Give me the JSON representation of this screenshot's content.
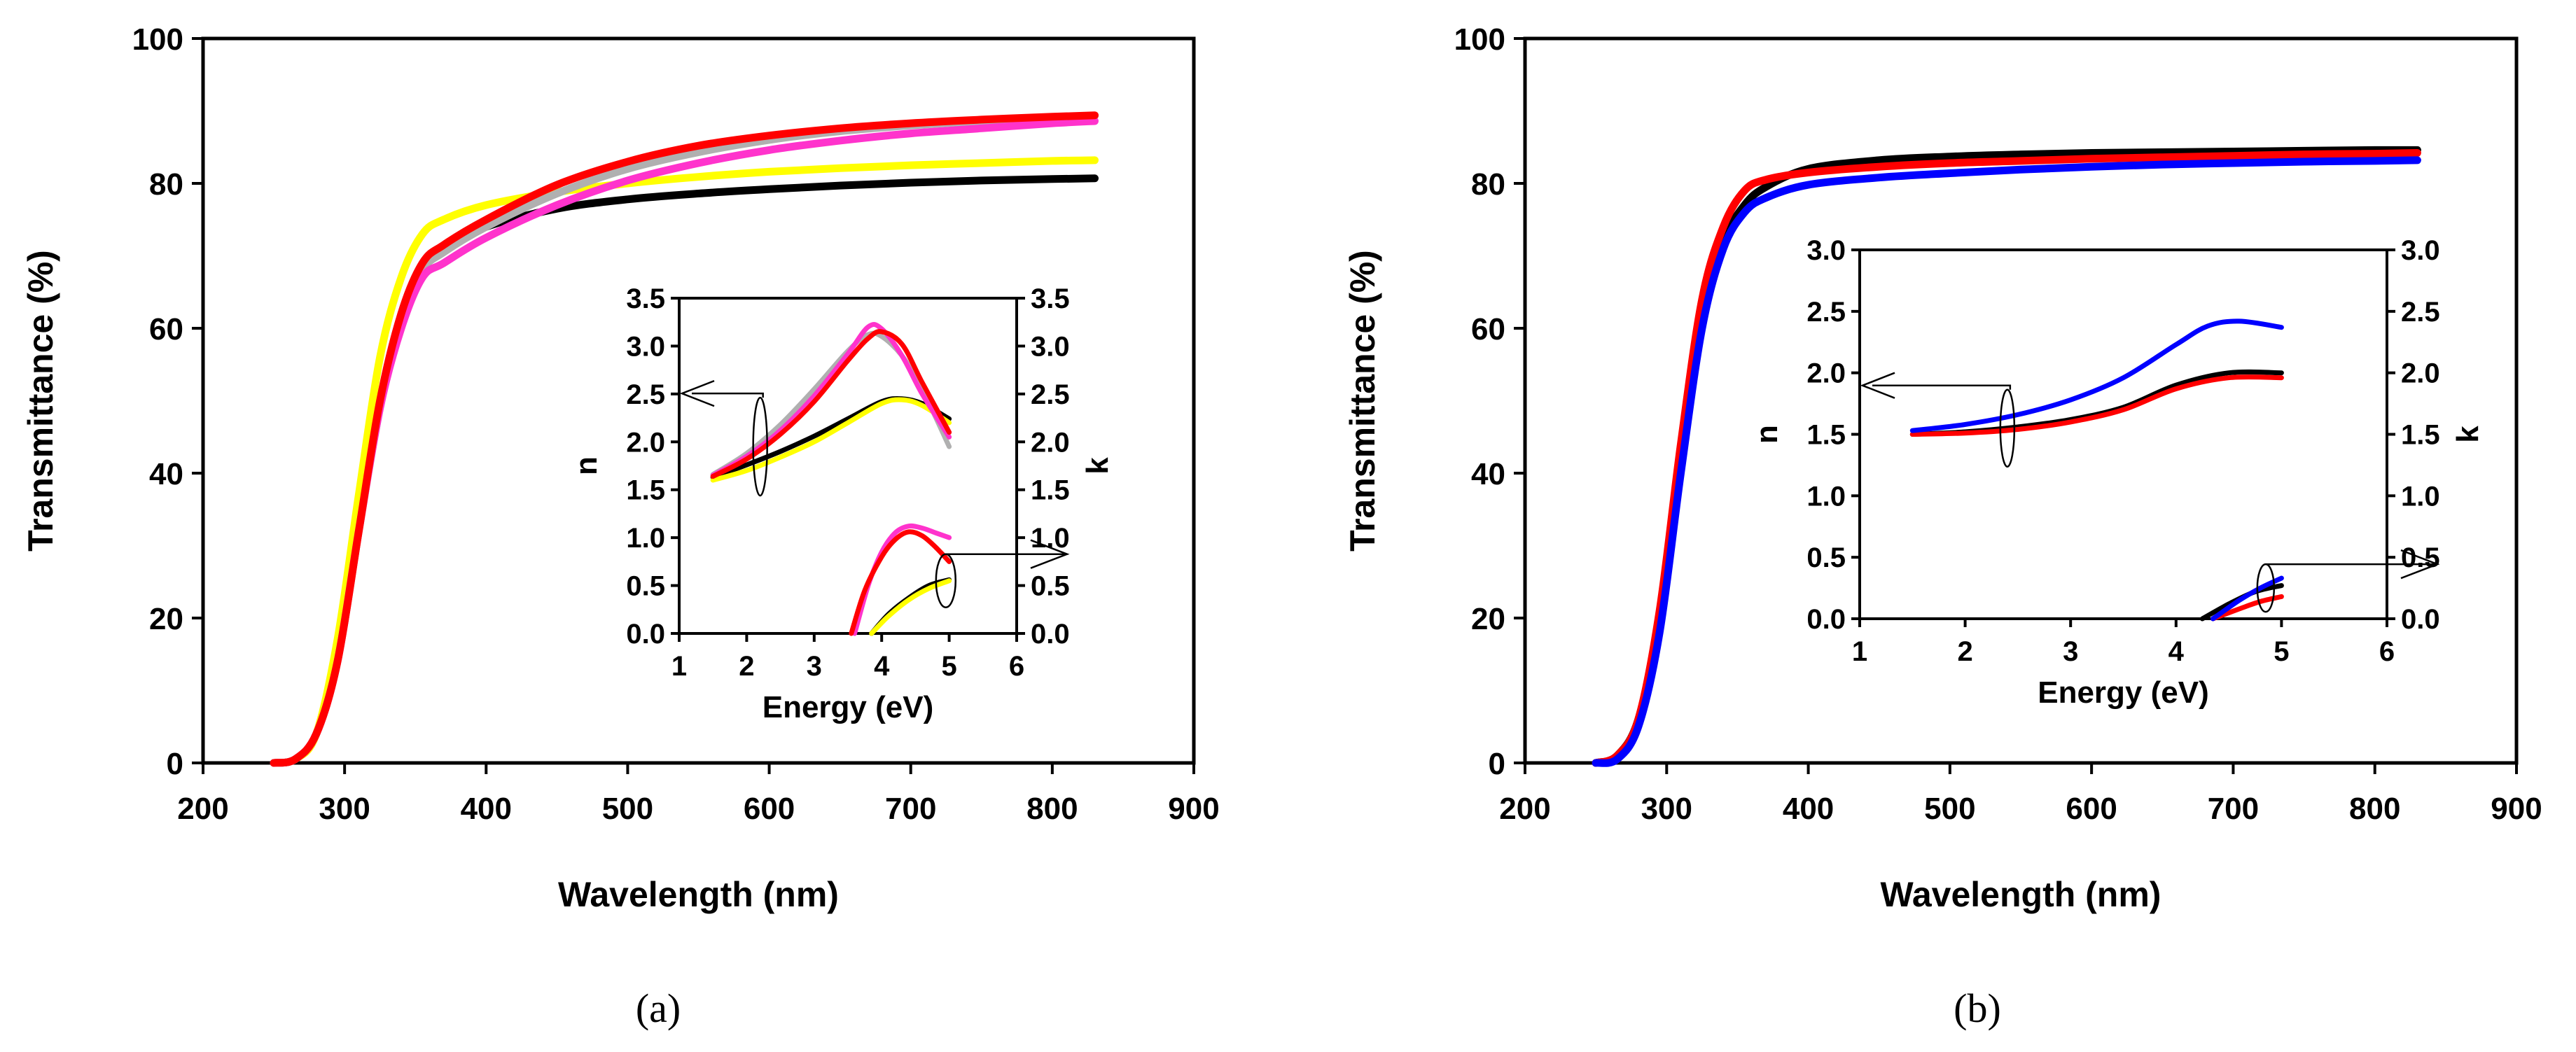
{
  "chart_data": [
    {
      "panel": "(a)",
      "type": "line",
      "xlabel": "Wavelength (nm)",
      "ylabel": "Transmittance (%)",
      "xlim": [
        200,
        900
      ],
      "ylim": [
        0,
        100
      ],
      "xticks": [
        200,
        300,
        400,
        500,
        600,
        700,
        800,
        900
      ],
      "yticks": [
        0,
        20,
        40,
        60,
        80,
        100
      ],
      "series": [
        {
          "name": "black",
          "color": "#000000",
          "x": [
            250,
            265,
            280,
            295,
            310,
            325,
            340,
            355,
            370,
            400,
            450,
            500,
            550,
            600,
            650,
            700,
            750,
            800,
            830
          ],
          "y": [
            0,
            0.5,
            4,
            15,
            33,
            50,
            61,
            68,
            71,
            74,
            76.5,
            77.8,
            78.6,
            79.2,
            79.7,
            80.1,
            80.4,
            80.6,
            80.7
          ]
        },
        {
          "name": "yellow",
          "color": "#ffff00",
          "x": [
            250,
            265,
            280,
            295,
            310,
            325,
            340,
            355,
            370,
            400,
            450,
            500,
            550,
            600,
            650,
            700,
            750,
            800,
            830
          ],
          "y": [
            0,
            0.5,
            4,
            17,
            37,
            56,
            67,
            73,
            75,
            77,
            78.8,
            80,
            80.9,
            81.6,
            82.1,
            82.5,
            82.8,
            83.1,
            83.2
          ]
        },
        {
          "name": "gray",
          "color": "#b0b0b0",
          "x": [
            250,
            265,
            280,
            295,
            310,
            325,
            340,
            355,
            370,
            400,
            450,
            500,
            550,
            600,
            650,
            700,
            750,
            800,
            830
          ],
          "y": [
            0,
            0.5,
            4,
            14,
            32,
            49,
            61,
            68,
            70.5,
            74,
            78.6,
            82,
            84.3,
            86,
            87.2,
            88,
            88.6,
            89.1,
            89.3
          ]
        },
        {
          "name": "magenta",
          "color": "#ff33cc",
          "x": [
            250,
            265,
            280,
            295,
            310,
            325,
            340,
            355,
            370,
            400,
            450,
            500,
            550,
            600,
            650,
            700,
            750,
            800,
            830
          ],
          "y": [
            0,
            0.5,
            4,
            14,
            32,
            49,
            60,
            67,
            69,
            72.5,
            77,
            80.4,
            82.8,
            84.6,
            85.9,
            86.9,
            87.6,
            88.3,
            88.6
          ]
        },
        {
          "name": "red",
          "color": "#ff0000",
          "x": [
            250,
            265,
            280,
            295,
            310,
            325,
            340,
            355,
            370,
            400,
            450,
            500,
            550,
            600,
            650,
            700,
            750,
            800,
            830
          ],
          "y": [
            0,
            0.5,
            4,
            14,
            32,
            50,
            62,
            69,
            71.5,
            75,
            79.8,
            83,
            85.2,
            86.6,
            87.6,
            88.3,
            88.8,
            89.2,
            89.4
          ]
        }
      ],
      "inset": {
        "xlabel": "Energy (eV)",
        "ylabel_left": "n",
        "ylabel_right": "k",
        "xlim": [
          1,
          6
        ],
        "ylim": [
          0,
          3.5
        ],
        "xticks": [
          1,
          2,
          3,
          4,
          5,
          6
        ],
        "yticks": [
          0.0,
          0.5,
          1.0,
          1.5,
          2.0,
          2.5,
          3.0,
          3.5
        ],
        "ytick_labels": [
          "0.0",
          "0.5",
          "1.0",
          "1.5",
          "2.0",
          "2.5",
          "3.0",
          "3.5"
        ],
        "n_series": [
          {
            "name": "black",
            "color": "#000000",
            "x": [
              1.5,
              2,
              2.5,
              3,
              3.5,
              4,
              4.3,
              4.6,
              5
            ],
            "y": [
              1.63,
              1.76,
              1.9,
              2.06,
              2.24,
              2.42,
              2.45,
              2.4,
              2.24
            ]
          },
          {
            "name": "yellow",
            "color": "#ffff00",
            "x": [
              1.5,
              2,
              2.5,
              3,
              3.5,
              4,
              4.3,
              4.6,
              5
            ],
            "y": [
              1.6,
              1.7,
              1.84,
              2.0,
              2.2,
              2.4,
              2.44,
              2.38,
              2.2
            ]
          },
          {
            "name": "gray",
            "color": "#b0b0b0",
            "x": [
              1.5,
              2,
              2.5,
              3,
              3.5,
              3.8,
              4,
              4.3,
              4.6,
              5
            ],
            "y": [
              1.66,
              1.88,
              2.18,
              2.55,
              2.95,
              3.12,
              3.1,
              2.9,
              2.55,
              1.95
            ]
          },
          {
            "name": "magenta",
            "color": "#ff33cc",
            "x": [
              1.5,
              2,
              2.5,
              3,
              3.5,
              3.8,
              4,
              4.3,
              4.6,
              5
            ],
            "y": [
              1.65,
              1.85,
              2.12,
              2.48,
              2.92,
              3.2,
              3.18,
              2.9,
              2.5,
              2.05
            ]
          },
          {
            "name": "red",
            "color": "#ff0000",
            "x": [
              1.5,
              2,
              2.5,
              3,
              3.5,
              3.8,
              4,
              4.3,
              4.6,
              5
            ],
            "y": [
              1.64,
              1.82,
              2.08,
              2.42,
              2.85,
              3.08,
              3.15,
              3.02,
              2.62,
              2.1
            ]
          }
        ],
        "k_series": [
          {
            "name": "black",
            "color": "#000000",
            "x": [
              3.85,
              4.1,
              4.4,
              4.7,
              5
            ],
            "y": [
              0,
              0.2,
              0.37,
              0.5,
              0.56
            ]
          },
          {
            "name": "yellow",
            "color": "#ffff00",
            "x": [
              3.85,
              4.1,
              4.4,
              4.7,
              5
            ],
            "y": [
              0,
              0.18,
              0.35,
              0.47,
              0.55
            ]
          },
          {
            "name": "magenta",
            "color": "#ff33cc",
            "x": [
              3.6,
              3.8,
              4.0,
              4.2,
              4.4,
              4.6,
              4.8,
              5
            ],
            "y": [
              0,
              0.5,
              0.85,
              1.05,
              1.12,
              1.1,
              1.05,
              1.0
            ]
          },
          {
            "name": "red",
            "color": "#ff0000",
            "x": [
              3.55,
              3.75,
              4.0,
              4.2,
              4.4,
              4.6,
              4.8,
              5
            ],
            "y": [
              0,
              0.45,
              0.8,
              0.98,
              1.06,
              1.02,
              0.9,
              0.75
            ]
          }
        ]
      }
    },
    {
      "panel": "(b)",
      "type": "line",
      "xlabel": "Wavelength (nm)",
      "ylabel": "Transmittance (%)",
      "xlim": [
        200,
        900
      ],
      "ylim": [
        0,
        100
      ],
      "xticks": [
        200,
        300,
        400,
        500,
        600,
        700,
        800,
        900
      ],
      "yticks": [
        0,
        20,
        40,
        60,
        80,
        100
      ],
      "series": [
        {
          "name": "black",
          "color": "#000000",
          "x": [
            250,
            265,
            280,
            295,
            310,
            325,
            340,
            355,
            370,
            400,
            450,
            500,
            550,
            600,
            650,
            700,
            750,
            800,
            830
          ],
          "y": [
            0,
            1,
            6,
            20,
            42,
            62,
            72,
            77,
            79.5,
            82,
            83.2,
            83.7,
            84,
            84.2,
            84.3,
            84.4,
            84.5,
            84.6,
            84.6
          ]
        },
        {
          "name": "red",
          "color": "#ff0000",
          "x": [
            250,
            265,
            280,
            295,
            310,
            325,
            340,
            355,
            370,
            400,
            450,
            500,
            550,
            600,
            650,
            700,
            750,
            800,
            830
          ],
          "y": [
            0,
            1,
            6,
            21,
            44,
            64,
            74,
            79,
            80.5,
            81.5,
            82.3,
            82.8,
            83.1,
            83.4,
            83.6,
            83.8,
            84,
            84.1,
            84.2
          ]
        },
        {
          "name": "blue",
          "color": "#0000ff",
          "x": [
            250,
            265,
            280,
            295,
            310,
            325,
            340,
            355,
            370,
            400,
            450,
            500,
            550,
            600,
            650,
            700,
            750,
            800,
            830
          ],
          "y": [
            0,
            0.5,
            5,
            18,
            40,
            60,
            71,
            76,
            78,
            79.8,
            80.8,
            81.4,
            81.9,
            82.3,
            82.6,
            82.8,
            83,
            83.1,
            83.2
          ]
        }
      ],
      "inset": {
        "xlabel": "Energy (eV)",
        "ylabel_left": "n",
        "ylabel_right": "k",
        "xlim": [
          1,
          6
        ],
        "ylim": [
          0,
          3
        ],
        "xticks": [
          1,
          2,
          3,
          4,
          5,
          6
        ],
        "yticks": [
          0.0,
          0.5,
          1.0,
          1.5,
          2.0,
          2.5,
          3.0
        ],
        "ytick_labels": [
          "0.0",
          "0.5",
          "1.0",
          "1.5",
          "2.0",
          "2.5",
          "3.0"
        ],
        "n_series": [
          {
            "name": "black",
            "color": "#000000",
            "x": [
              1.5,
              2,
              2.5,
              3,
              3.5,
              4,
              4.5,
              5
            ],
            "y": [
              1.5,
              1.52,
              1.56,
              1.62,
              1.72,
              1.9,
              2.0,
              2.0
            ]
          },
          {
            "name": "red",
            "color": "#ff0000",
            "x": [
              1.5,
              2,
              2.5,
              3,
              3.5,
              4,
              4.5,
              5
            ],
            "y": [
              1.5,
              1.51,
              1.54,
              1.6,
              1.7,
              1.87,
              1.96,
              1.96
            ]
          },
          {
            "name": "blue",
            "color": "#0000ff",
            "x": [
              1.5,
              2,
              2.5,
              3,
              3.5,
              4,
              4.3,
              4.6,
              5
            ],
            "y": [
              1.53,
              1.58,
              1.66,
              1.78,
              1.96,
              2.23,
              2.38,
              2.42,
              2.37
            ]
          }
        ],
        "k_series": [
          {
            "name": "black",
            "color": "#000000",
            "x": [
              4.25,
              4.5,
              4.75,
              5
            ],
            "y": [
              0,
              0.12,
              0.22,
              0.27
            ]
          },
          {
            "name": "red",
            "color": "#ff0000",
            "x": [
              4.35,
              4.6,
              4.8,
              5
            ],
            "y": [
              0,
              0.08,
              0.14,
              0.18
            ]
          },
          {
            "name": "blue",
            "color": "#0000ff",
            "x": [
              4.35,
              4.6,
              4.8,
              5
            ],
            "y": [
              0,
              0.15,
              0.25,
              0.33
            ]
          }
        ]
      }
    }
  ]
}
